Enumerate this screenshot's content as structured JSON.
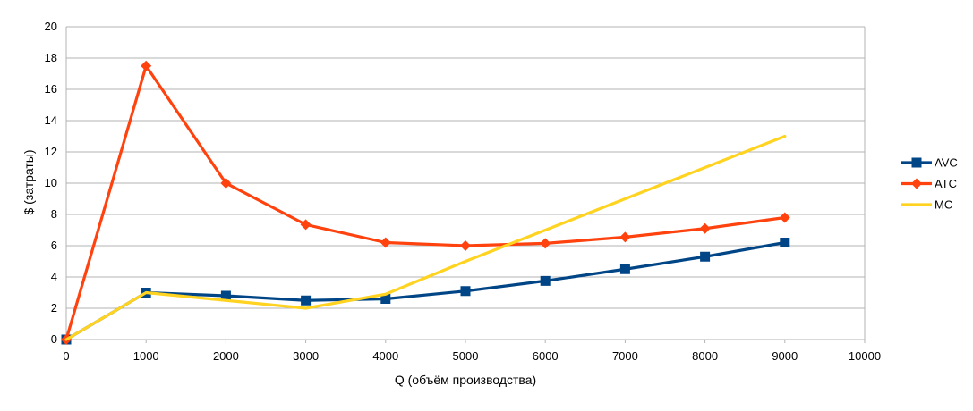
{
  "chart_data": {
    "type": "line",
    "title": "",
    "xlabel": "Q (объём производства)",
    "ylabel": "$ (затраты)",
    "xlim": [
      0,
      10000
    ],
    "ylim": [
      0,
      20
    ],
    "x_ticks": [
      "0",
      "1000",
      "2000",
      "3000",
      "4000",
      "5000",
      "6000",
      "7000",
      "8000",
      "9000",
      "10000"
    ],
    "y_ticks": [
      "0",
      "2",
      "4",
      "6",
      "8",
      "10",
      "12",
      "14",
      "16",
      "18",
      "20"
    ],
    "grid": "horizontal",
    "legend_position": "right",
    "x": [
      0,
      1000,
      2000,
      3000,
      4000,
      5000,
      6000,
      7000,
      8000,
      9000
    ],
    "series": [
      {
        "name": "AVC",
        "color": "#004586",
        "marker": "square",
        "values": [
          0,
          3.0,
          2.8,
          2.5,
          2.6,
          3.1,
          3.75,
          4.5,
          5.3,
          6.2
        ]
      },
      {
        "name": "ATC",
        "color": "#ff420e",
        "marker": "diamond",
        "values": [
          0,
          17.5,
          10.0,
          7.35,
          6.2,
          6.0,
          6.15,
          6.55,
          7.1,
          7.8
        ]
      },
      {
        "name": "MC",
        "color": "#ffd320",
        "marker": "none",
        "values": [
          0,
          3.0,
          2.5,
          2.0,
          2.9,
          5.0,
          7.0,
          9.0,
          11.0,
          13.0
        ]
      }
    ]
  }
}
